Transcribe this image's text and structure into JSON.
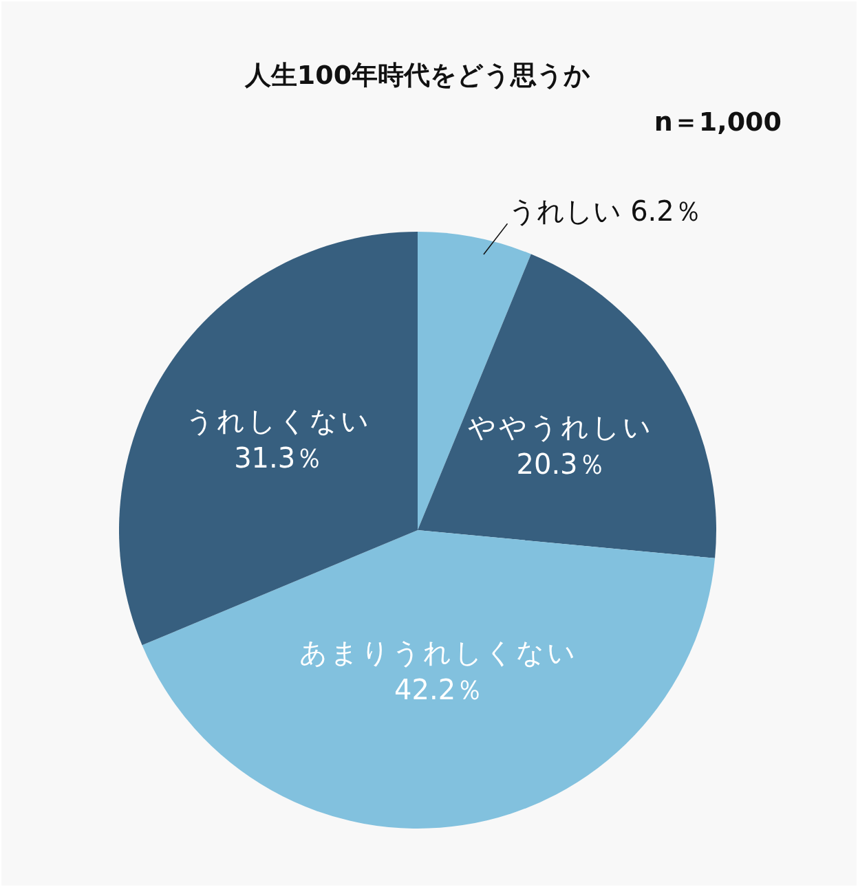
{
  "chart_data": {
    "type": "pie",
    "title": "人生100年時代をどう思うか",
    "subtitle": "n＝1,000",
    "categories": [
      "うれしい",
      "ややうれしい",
      "あまりうれしくない",
      "うれしくない"
    ],
    "values": [
      6.2,
      20.3,
      42.2,
      31.3
    ],
    "value_labels": [
      "6.2％",
      "20.3％",
      "42.2％",
      "31.3％"
    ],
    "colors": [
      "#82c1de",
      "#375f7f",
      "#82c1de",
      "#375f7f"
    ],
    "legend": false
  }
}
